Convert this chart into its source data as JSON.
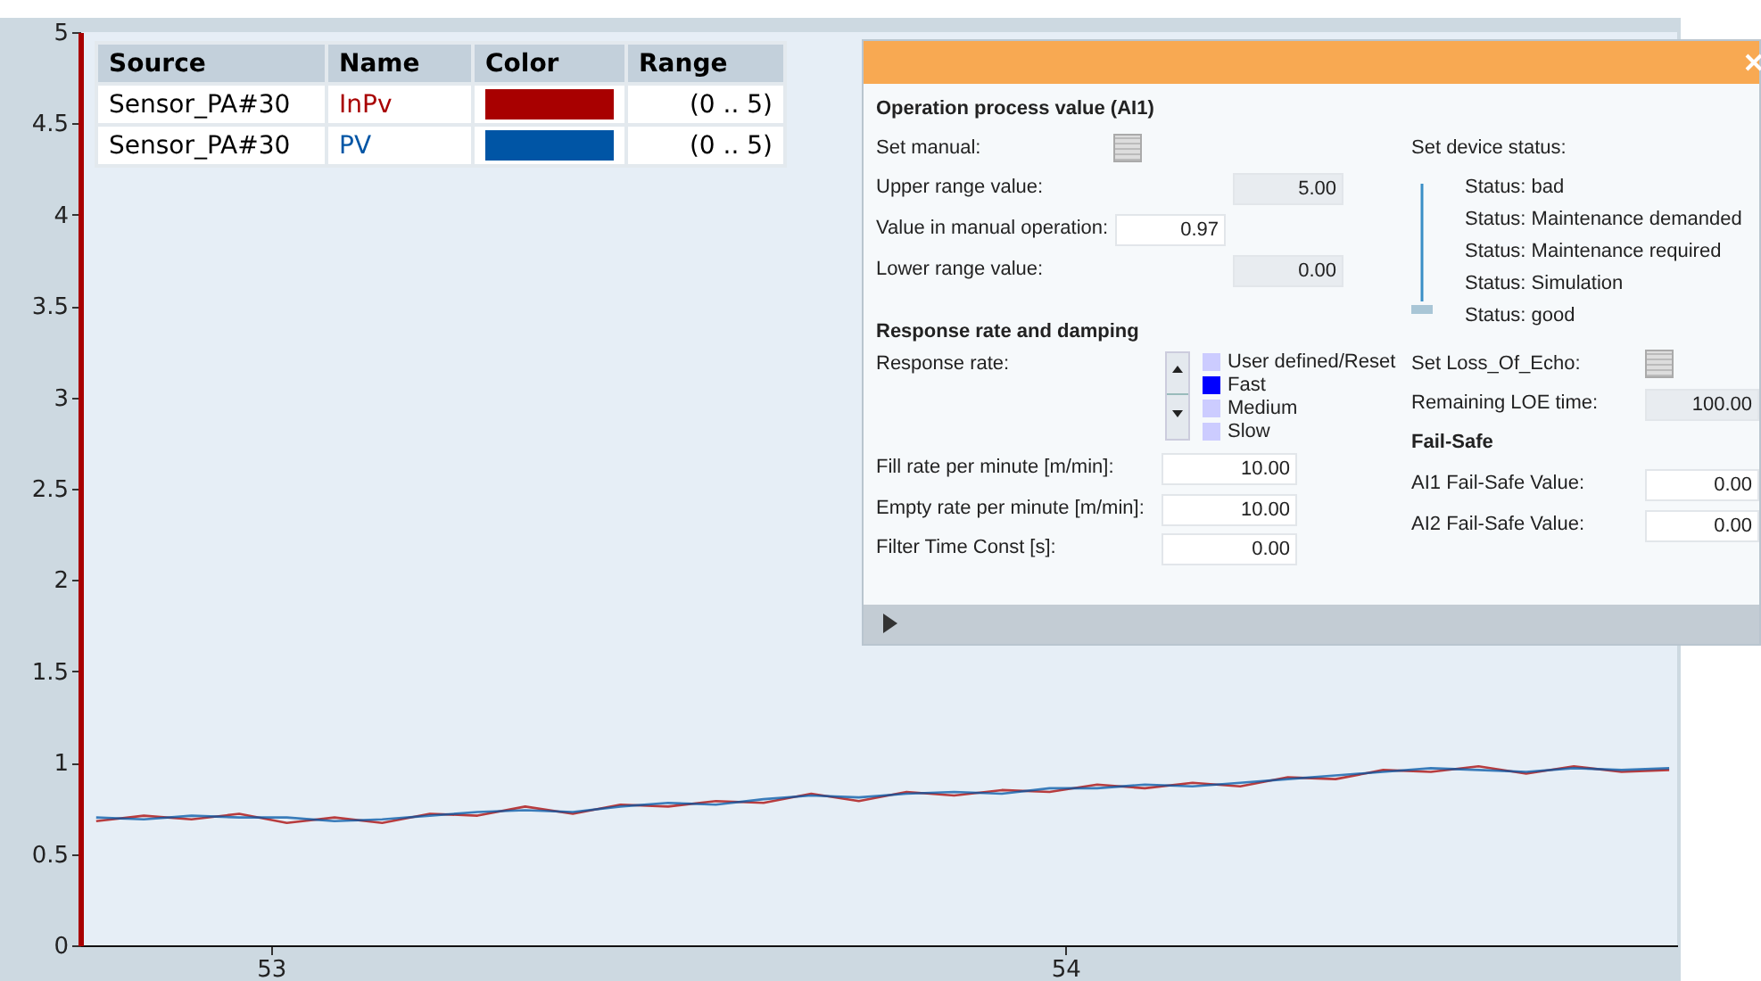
{
  "chart_data": [
    {
      "type": "line",
      "x": [
        52.78,
        52.84,
        52.9,
        52.96,
        53.02,
        53.08,
        53.14,
        53.2,
        53.26,
        53.32,
        53.38,
        53.44,
        53.5,
        53.56,
        53.62,
        53.68,
        53.74,
        53.8,
        53.86,
        53.92,
        53.98,
        54.04,
        54.1,
        54.16,
        54.22,
        54.28,
        54.34,
        54.4,
        54.46,
        54.52,
        54.58,
        54.64,
        54.7,
        54.76
      ],
      "series": [
        {
          "name": "InPv",
          "color": "#a80000",
          "values": [
            0.68,
            0.71,
            0.69,
            0.72,
            0.67,
            0.7,
            0.67,
            0.72,
            0.71,
            0.76,
            0.72,
            0.77,
            0.76,
            0.79,
            0.78,
            0.83,
            0.79,
            0.84,
            0.82,
            0.85,
            0.84,
            0.88,
            0.86,
            0.89,
            0.87,
            0.92,
            0.91,
            0.96,
            0.95,
            0.98,
            0.94,
            0.98,
            0.95,
            0.96
          ]
        },
        {
          "name": "PV",
          "color": "#0055a5",
          "values": [
            0.7,
            0.69,
            0.71,
            0.7,
            0.7,
            0.68,
            0.69,
            0.71,
            0.73,
            0.74,
            0.73,
            0.76,
            0.78,
            0.77,
            0.8,
            0.82,
            0.81,
            0.83,
            0.84,
            0.83,
            0.86,
            0.86,
            0.88,
            0.87,
            0.89,
            0.91,
            0.93,
            0.95,
            0.97,
            0.96,
            0.95,
            0.97,
            0.96,
            0.97
          ]
        }
      ],
      "xlim": [
        52.76,
        54.77
      ],
      "xticks": [
        53,
        54
      ],
      "ylim": [
        0,
        5
      ],
      "yticks": [
        0,
        0.5,
        1,
        1.5,
        2,
        2.5,
        3,
        3.5,
        4,
        4.5,
        5
      ],
      "legend": "top left",
      "annotations": [
        "Source",
        "Name",
        "Color",
        "Range",
        "Sensor_PA#30",
        "(0 .. 5)",
        "Sensor_PA#30",
        "(0 .. 5)"
      ]
    },
    {
      "type": "other",
      "title": "Operation process value (AI1)",
      "annotations": [
        "Set manual:",
        "Upper range value:",
        "5.00",
        "Value in manual operation:",
        "0.97",
        "Lower range value:",
        "0.00",
        "Response rate and damping",
        "Response rate:",
        "User defined/Reset",
        "Fast",
        "Medium",
        "Slow",
        "Fill rate per minute [m/min]:",
        "10.00",
        "Empty rate per minute [m/min]:",
        "10.00",
        "Filter Time Const [s]:",
        "0.00",
        "Set device status:",
        "Status: bad",
        "Status: Maintenance demanded",
        "Status: Maintenance required",
        "Status: Simulation",
        "Status: good",
        "Set Loss_Of_Echo:",
        "Remaining LOE time:",
        "100.00",
        "Fail-Safe",
        "AI1 Fail-Safe Value:",
        "0.00",
        "AI2 Fail-Safe Value:",
        "0.00"
      ]
    }
  ]
}
